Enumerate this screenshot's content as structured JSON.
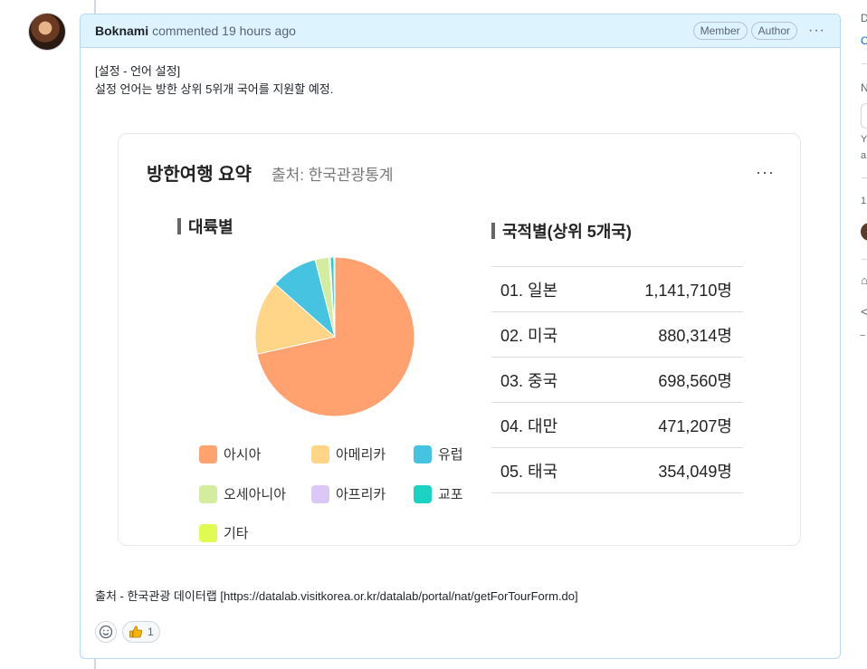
{
  "comment": {
    "author": "Boknami",
    "action": "commented 19 hours ago",
    "badges": [
      "Member",
      "Author"
    ],
    "more": "···",
    "body_line1": "[설정 - 언어 설정]",
    "body_line2": "설정 언어는 방한 상위 5위개 국어를 지원할 예정.",
    "source_text": "출처 - 한국관광 데이터랩 [https://datalab.visitkorea.or.kr/datalab/portal/nat/getForTourForm.do]",
    "reactions": {
      "thumbs_count": "1"
    }
  },
  "card": {
    "title": "방한여행 요약",
    "source": "출처: 한국관광통계",
    "more": "···",
    "continent_title": "대륙별",
    "nation_title": "국적별(상위 5개국)"
  },
  "chart_data": [
    {
      "type": "pie",
      "title": "대륙별",
      "labels": [
        "아시아",
        "아메리카",
        "유럽",
        "오세아니아",
        "아프리카",
        "교포",
        "기타"
      ],
      "values": [
        71.5,
        15.0,
        9.5,
        2.8,
        0.3,
        0.7,
        0.2
      ],
      "colors": [
        "#ffa270",
        "#ffd588",
        "#45c3e0",
        "#d4ec9d",
        "#dcc8f7",
        "#1bd3c2",
        "#e1fb52"
      ]
    },
    {
      "type": "table",
      "title": "국적별(상위 5개국)",
      "rows": [
        {
          "rank": "01. 일본",
          "value": "1,141,710명"
        },
        {
          "rank": "02. 미국",
          "value": "880,314명"
        },
        {
          "rank": "03. 중국",
          "value": "698,560명"
        },
        {
          "rank": "04. 대만",
          "value": "471,207명"
        },
        {
          "rank": "05. 태국",
          "value": "354,049명"
        }
      ]
    }
  ],
  "sidebar": {
    "letters": [
      "D",
      "C",
      "N",
      "Y",
      "a",
      "1"
    ]
  }
}
